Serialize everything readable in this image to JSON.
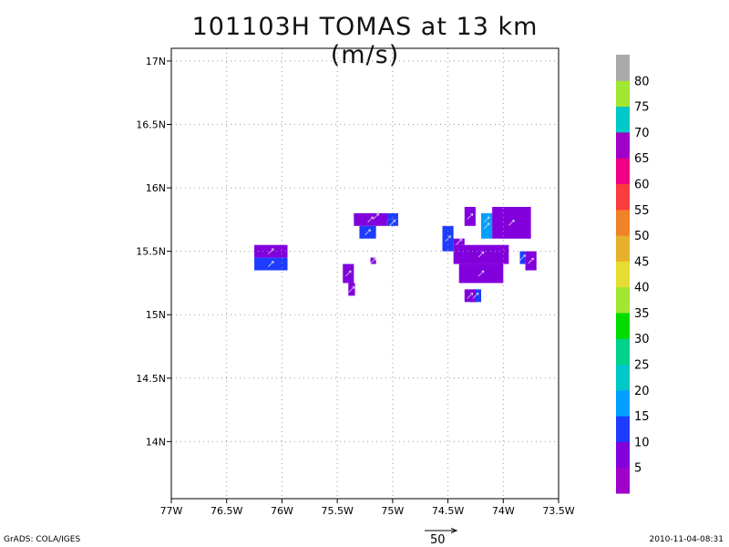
{
  "chart_data": {
    "type": "heatmap",
    "title": "101103H TOMAS at 13 km (m/s)",
    "x_ticks": [
      "77W",
      "76.5W",
      "76W",
      "75.5W",
      "75W",
      "74.5W",
      "74W",
      "73.5W"
    ],
    "y_ticks": [
      "17N",
      "16.5N",
      "16N",
      "15.5N",
      "15N",
      "14.5N",
      "14N"
    ],
    "xlim": [
      -77,
      -73.5
    ],
    "ylim": [
      13.55,
      17.1
    ],
    "grid": true,
    "colorbar": {
      "labels": [
        "5",
        "10",
        "15",
        "20",
        "25",
        "30",
        "35",
        "40",
        "45",
        "50",
        "55",
        "60",
        "65",
        "70",
        "75",
        "80"
      ],
      "colors": [
        "#a000c8",
        "#8200dc",
        "#1e3cff",
        "#00a0ff",
        "#00c8c8",
        "#00d28c",
        "#00dc00",
        "#a0e632",
        "#e6dc32",
        "#e6af2d",
        "#f08228",
        "#fa3c3c",
        "#f00082",
        "#a000c8",
        "#00c8c8",
        "#a0e632",
        "#aaaaaa"
      ]
    },
    "cells": [
      {
        "lon": -76.25,
        "lat": 15.45,
        "w": 0.3,
        "h": 0.1,
        "value": 5
      },
      {
        "lon": -76.25,
        "lat": 15.35,
        "w": 0.3,
        "h": 0.1,
        "value": 12
      },
      {
        "lon": -75.45,
        "lat": 15.25,
        "w": 0.1,
        "h": 0.15,
        "value": 5
      },
      {
        "lon": -75.4,
        "lat": 15.15,
        "w": 0.06,
        "h": 0.1,
        "value": 5
      },
      {
        "lon": -75.35,
        "lat": 15.75,
        "w": 0.4,
        "h": 0.05,
        "value": 12
      },
      {
        "lon": -75.35,
        "lat": 15.7,
        "w": 0.3,
        "h": 0.1,
        "value": 5
      },
      {
        "lon": -75.3,
        "lat": 15.6,
        "w": 0.15,
        "h": 0.1,
        "value": 12
      },
      {
        "lon": -75.05,
        "lat": 15.7,
        "w": 0.1,
        "h": 0.05,
        "value": 12
      },
      {
        "lon": -75.2,
        "lat": 15.4,
        "w": 0.05,
        "h": 0.05,
        "value": 5
      },
      {
        "lon": -74.55,
        "lat": 15.5,
        "w": 0.1,
        "h": 0.2,
        "value": 12
      },
      {
        "lon": -74.45,
        "lat": 15.55,
        "w": 0.1,
        "h": 0.05,
        "value": 5
      },
      {
        "lon": -74.45,
        "lat": 15.4,
        "w": 0.5,
        "h": 0.15,
        "value": 5
      },
      {
        "lon": -74.4,
        "lat": 15.25,
        "w": 0.4,
        "h": 0.15,
        "value": 5
      },
      {
        "lon": -74.35,
        "lat": 15.7,
        "w": 0.1,
        "h": 0.15,
        "value": 5
      },
      {
        "lon": -74.2,
        "lat": 15.7,
        "w": 0.1,
        "h": 0.1,
        "value": 12
      },
      {
        "lon": -74.2,
        "lat": 15.6,
        "w": 0.1,
        "h": 0.2,
        "value": 18
      },
      {
        "lon": -74.1,
        "lat": 15.6,
        "w": 0.35,
        "h": 0.25,
        "value": 5
      },
      {
        "lon": -73.85,
        "lat": 15.4,
        "w": 0.05,
        "h": 0.1,
        "value": 12
      },
      {
        "lon": -73.8,
        "lat": 15.35,
        "w": 0.1,
        "h": 0.15,
        "value": 5
      },
      {
        "lon": -74.3,
        "lat": 15.1,
        "w": 0.1,
        "h": 0.1,
        "value": 12
      },
      {
        "lon": -74.35,
        "lat": 15.1,
        "w": 0.1,
        "h": 0.1,
        "value": 5
      }
    ]
  },
  "reference_vector": {
    "label": "50"
  },
  "footer": {
    "left": "GrADS: COLA/IGES",
    "right": "2010-11-04-08:31"
  }
}
